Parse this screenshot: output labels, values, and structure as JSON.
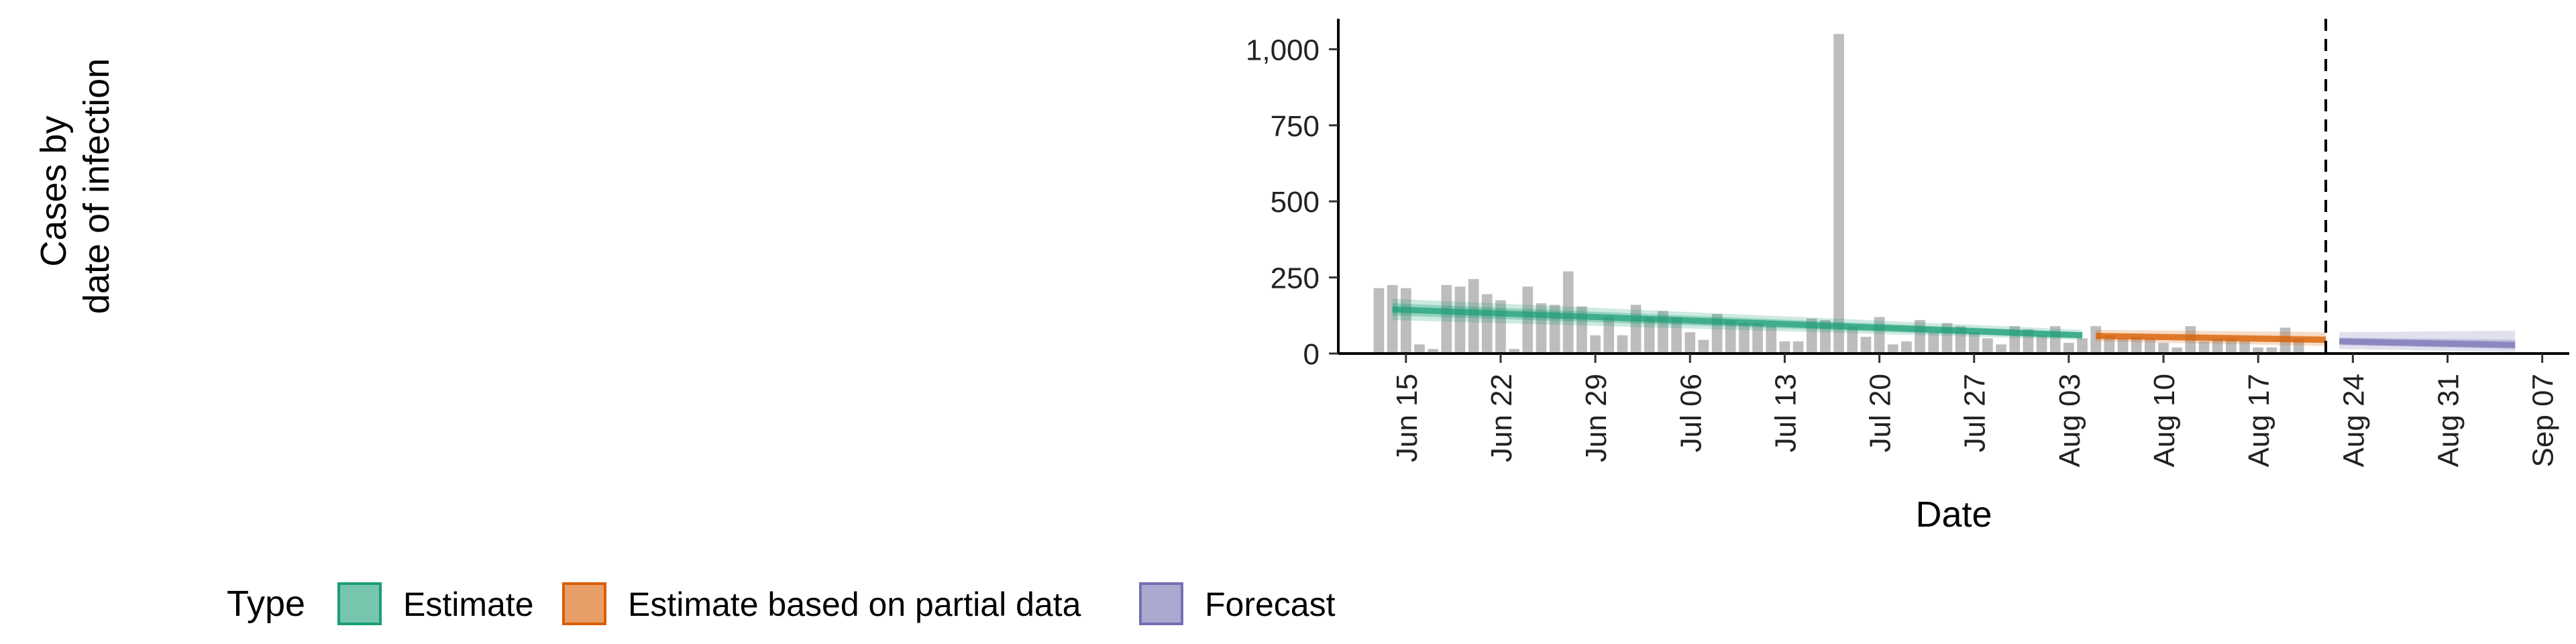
{
  "chart_data": {
    "type": "bar",
    "xlabel": "Date",
    "ylabel_lines": [
      "Cases by",
      "date of infection"
    ],
    "ylim": [
      0,
      1100
    ],
    "y_ticks": [
      0,
      250,
      500,
      750,
      1000
    ],
    "y_tick_labels": [
      "0",
      "250",
      "500",
      "750",
      "1,000"
    ],
    "x_range": [
      "2020-06-10",
      "2020-09-09"
    ],
    "x_ticks": [
      "2020-06-15",
      "2020-06-22",
      "2020-06-29",
      "2020-07-06",
      "2020-07-13",
      "2020-07-20",
      "2020-07-27",
      "2020-08-03",
      "2020-08-10",
      "2020-08-17",
      "2020-08-24",
      "2020-08-31",
      "2020-09-07"
    ],
    "x_tick_labels": [
      "Jun 15",
      "Jun 22",
      "Jun 29",
      "Jul 06",
      "Jul 13",
      "Jul 20",
      "Jul 27",
      "Aug 03",
      "Aug 10",
      "Aug 17",
      "Aug 24",
      "Aug 31",
      "Sep 07"
    ],
    "vline_date": "2020-08-22",
    "bar_color": "#bdbdbd",
    "bars": {
      "start_date": "2020-06-13",
      "values": [
        215,
        225,
        215,
        30,
        15,
        225,
        220,
        245,
        195,
        175,
        15,
        220,
        165,
        160,
        270,
        155,
        60,
        120,
        60,
        160,
        120,
        140,
        120,
        70,
        45,
        130,
        110,
        100,
        100,
        90,
        40,
        40,
        115,
        110,
        1050,
        90,
        55,
        120,
        30,
        40,
        110,
        70,
        100,
        90,
        70,
        50,
        30,
        90,
        80,
        60,
        90,
        35,
        50,
        90,
        60,
        50,
        55,
        50,
        35,
        20,
        90,
        40,
        50,
        50,
        40,
        20,
        20,
        85,
        50
      ]
    },
    "series": [
      {
        "name": "Estimate",
        "color": "#1b9e77",
        "start": "2020-06-14",
        "end": "2020-08-04",
        "median": [
          145,
          60
        ],
        "inner": [
          [
            125,
            165
          ],
          [
            50,
            70
          ]
        ],
        "outer": [
          [
            110,
            180
          ],
          [
            45,
            78
          ]
        ]
      },
      {
        "name": "Estimate based on partial data",
        "color": "#d95f02",
        "start": "2020-08-05",
        "end": "2020-08-22",
        "median": [
          58,
          45
        ],
        "inner": [
          [
            48,
            68
          ],
          [
            35,
            57
          ]
        ],
        "outer": [
          [
            40,
            78
          ],
          [
            25,
            70
          ]
        ]
      },
      {
        "name": "Forecast",
        "color": "#7570b3",
        "start": "2020-08-23",
        "end": "2020-09-05",
        "median": [
          40,
          28
        ],
        "inner": [
          [
            28,
            52
          ],
          [
            15,
            45
          ]
        ],
        "outer": [
          [
            15,
            70
          ],
          [
            5,
            75
          ]
        ]
      }
    ],
    "legend": {
      "title": "Type",
      "position": "bottom",
      "items": [
        "Estimate",
        "Estimate based on partial data",
        "Forecast"
      ]
    }
  }
}
